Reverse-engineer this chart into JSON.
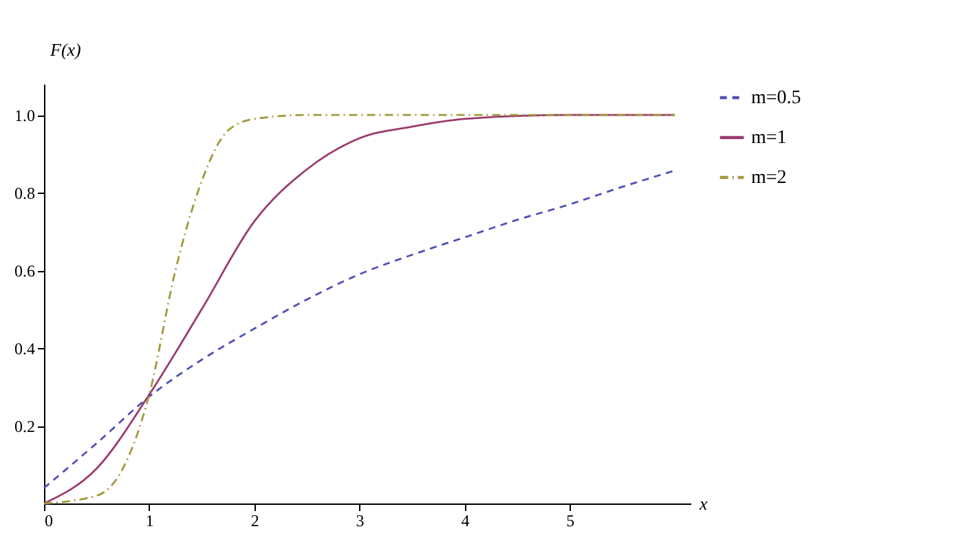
{
  "chart_data": {
    "type": "line",
    "xlabel": "x",
    "ylabel": "F(x)",
    "xlim": [
      0,
      6.15
    ],
    "ylim": [
      0,
      1.08
    ],
    "xticks": [
      0,
      1,
      2,
      3,
      4,
      5
    ],
    "yticks": [
      {
        "value": 0.2,
        "label": "0.2"
      },
      {
        "value": 0.4,
        "label": "0.4"
      },
      {
        "value": 0.6,
        "label": "0.6"
      },
      {
        "value": 0.8,
        "label": "0.8"
      },
      {
        "value": 1,
        "label": "1.0"
      }
    ],
    "grid": false,
    "legend": "right",
    "marker": "none",
    "series": [
      {
        "name": "m=0.5",
        "color": "#5050b8",
        "line_style": "dashed",
        "x": [
          0,
          0.5,
          1,
          1.5,
          2,
          2.5,
          3,
          3.5,
          4,
          4.5,
          5,
          5.5,
          6
        ],
        "values": [
          0.04,
          0.155,
          0.275,
          0.37,
          0.45,
          0.525,
          0.59,
          0.64,
          0.685,
          0.73,
          0.77,
          0.815,
          0.857
        ]
      },
      {
        "name": "m=1",
        "color": "#9b3a6e",
        "line_style": "solid",
        "x": [
          0,
          0.5,
          1,
          1.5,
          2,
          2.5,
          3,
          3.5,
          4,
          5,
          6
        ],
        "values": [
          0,
          0.09,
          0.28,
          0.5,
          0.726,
          0.86,
          0.94,
          0.97,
          0.99,
          1,
          1
        ]
      },
      {
        "name": "m=2",
        "color": "#a09a3c",
        "line_style": "dashdot",
        "x": [
          0,
          0.5,
          0.75,
          1,
          1.25,
          1.5,
          1.75,
          2,
          2.5,
          6
        ],
        "values": [
          0,
          0.02,
          0.09,
          0.28,
          0.6,
          0.83,
          0.96,
          0.99,
          1,
          1
        ]
      }
    ]
  }
}
